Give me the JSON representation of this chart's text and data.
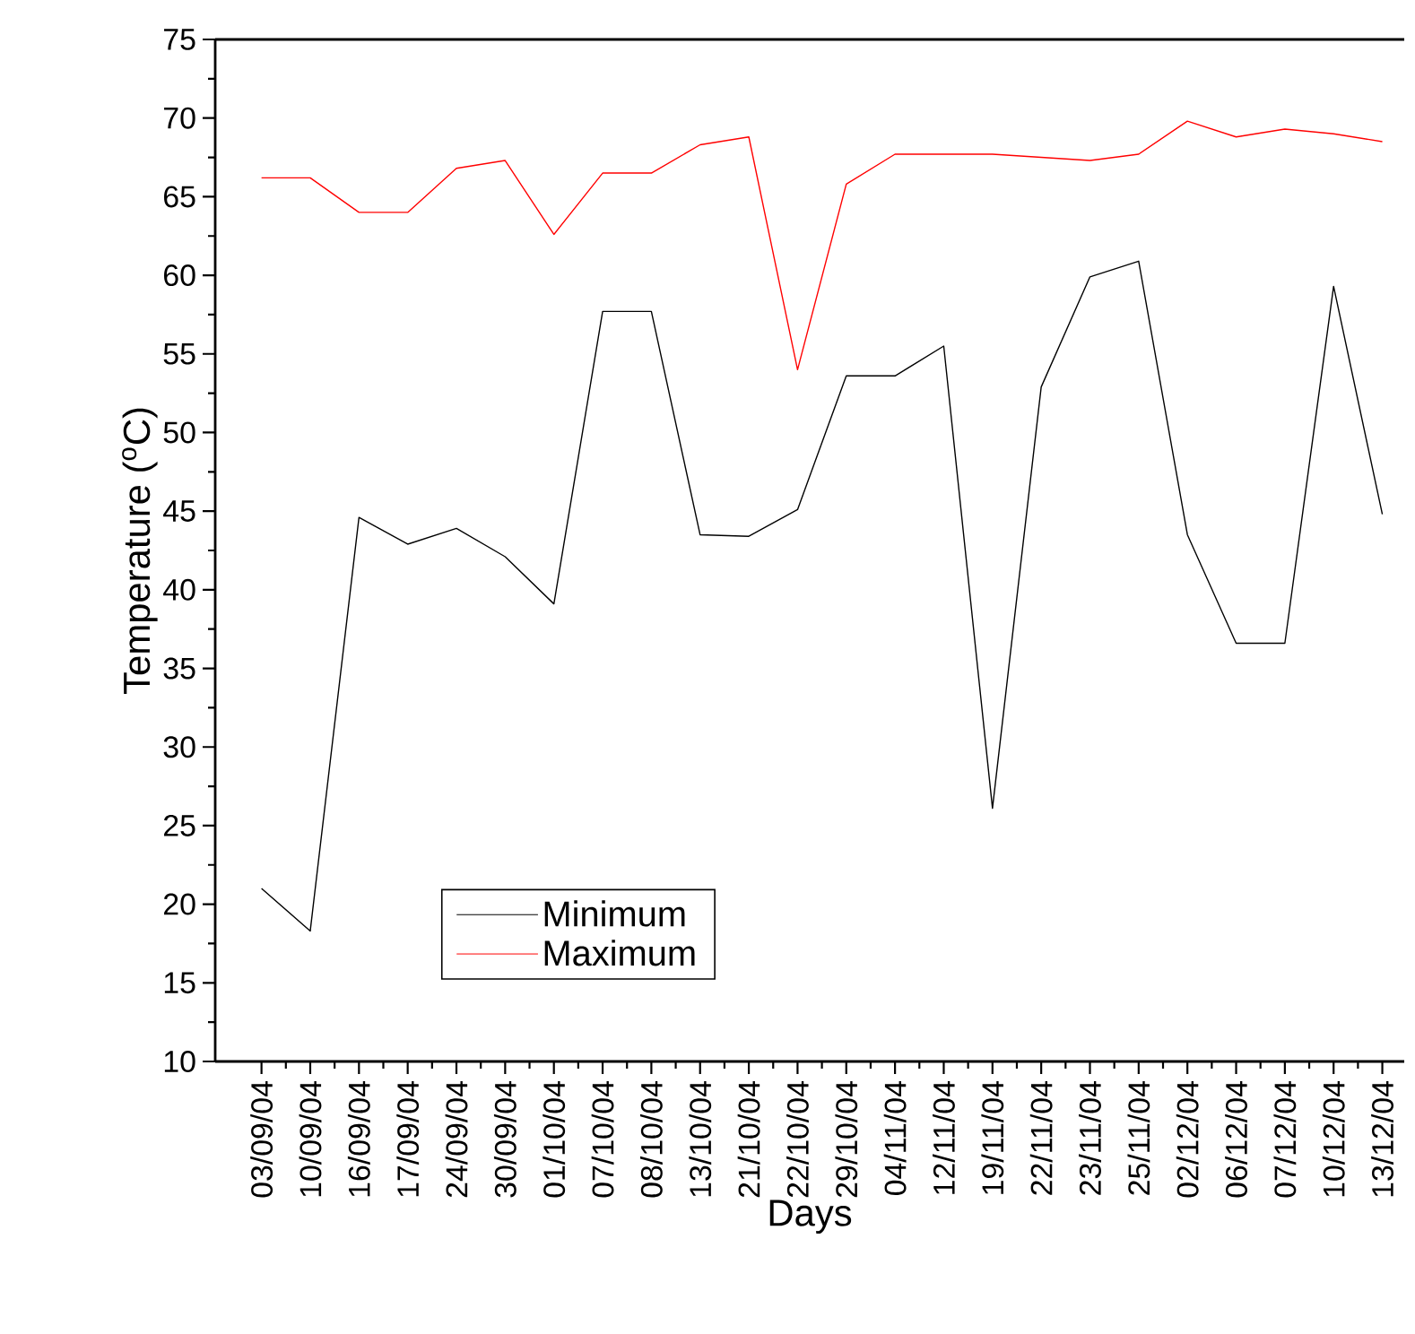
{
  "chart_data": {
    "type": "line",
    "xlabel": "Days",
    "ylabel": "Temperature ($^{o}$C)",
    "categories": [
      "03/09/04",
      "10/09/04",
      "16/09/04",
      "17/09/04",
      "24/09/04",
      "30/09/04",
      "01/10/04",
      "07/10/04",
      "08/10/04",
      "13/10/04",
      "21/10/04",
      "22/10/04",
      "29/10/04",
      "04/11/04",
      "12/11/04",
      "19/11/04",
      "22/11/04",
      "23/11/04",
      "25/11/04",
      "02/12/04",
      "06/12/04",
      "07/12/04",
      "10/12/04",
      "13/12/04"
    ],
    "series": [
      {
        "name": "Minimum",
        "color": "#000000",
        "values": [
          21.0,
          18.3,
          44.6,
          42.9,
          43.9,
          42.1,
          39.1,
          57.7,
          57.7,
          43.5,
          43.4,
          45.1,
          53.6,
          53.6,
          55.5,
          26.1,
          52.9,
          59.9,
          60.9,
          43.5,
          36.6,
          36.6,
          59.3,
          44.8
        ]
      },
      {
        "name": "Maximum",
        "color": "#ff0000",
        "values": [
          66.2,
          66.2,
          64.0,
          64.0,
          66.8,
          67.3,
          62.6,
          66.5,
          66.5,
          68.3,
          68.8,
          54.0,
          65.8,
          67.7,
          67.7,
          67.7,
          67.5,
          67.3,
          67.7,
          69.8,
          68.8,
          69.3,
          69.0,
          68.5
        ]
      }
    ],
    "ylim": [
      10,
      75
    ],
    "yticks": [
      10,
      15,
      20,
      25,
      30,
      35,
      40,
      45,
      50,
      55,
      60,
      65,
      70,
      75
    ],
    "legend": "bottom left"
  }
}
